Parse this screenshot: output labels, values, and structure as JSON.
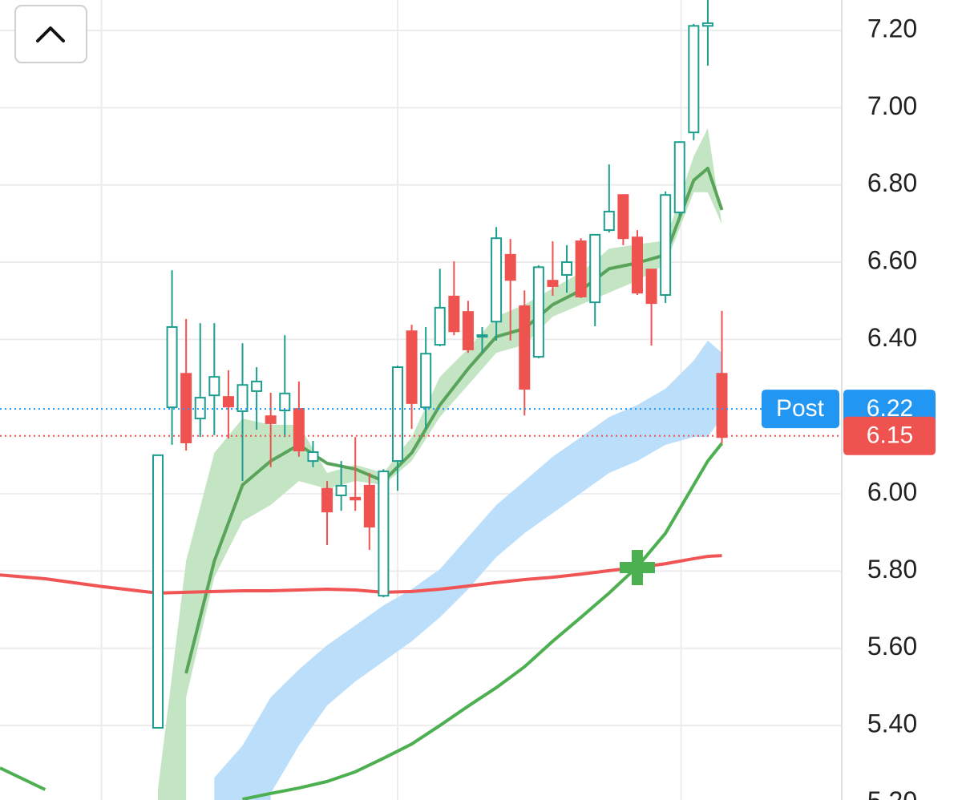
{
  "chart_data": {
    "type": "candlestick",
    "xlim": [
      -11.2,
      48.5
    ],
    "ylim": [
      5.207,
      7.279
    ],
    "yticks": [
      {
        "value": 7.2,
        "label": "7.20"
      },
      {
        "value": 7.0,
        "label": "7.00"
      },
      {
        "value": 6.8,
        "label": "6.80"
      },
      {
        "value": 6.6,
        "label": "6.60"
      },
      {
        "value": 6.4,
        "label": "6.40"
      },
      {
        "value": 6.0,
        "label": "6.00"
      },
      {
        "value": 5.8,
        "label": "5.80"
      },
      {
        "value": 5.6,
        "label": "5.60"
      },
      {
        "value": 5.4,
        "label": "5.40"
      },
      {
        "value": 5.2,
        "label": "5.20"
      }
    ],
    "xgrid": [
      -4,
      17,
      37.1
    ],
    "grid": true,
    "up_color": "#1e9e8e",
    "down_color": "#ef5350",
    "candles": {
      "x": [
        0,
        1,
        2,
        3,
        4,
        5,
        6,
        7,
        8,
        9,
        10,
        11,
        12,
        13,
        14,
        15,
        16,
        17,
        18,
        19,
        20,
        21,
        22,
        23,
        24,
        25,
        26,
        27,
        28,
        29,
        30,
        31,
        32,
        33,
        34,
        35,
        36,
        37,
        38,
        39,
        40
      ],
      "open": [
        5.394,
        6.224,
        6.311,
        6.195,
        6.255,
        6.251,
        6.214,
        6.266,
        6.201,
        6.216,
        6.22,
        6.085,
        6.013,
        5.996,
        5.99,
        6.021,
        5.736,
        6.085,
        6.421,
        6.224,
        6.386,
        6.511,
        6.471,
        6.407,
        6.446,
        6.619,
        6.486,
        6.355,
        6.552,
        6.567,
        6.654,
        6.496,
        6.683,
        6.774,
        6.664,
        6.581,
        6.515,
        6.729,
        6.936,
        7.212,
        6.311
      ],
      "high": [
        6.1,
        6.579,
        6.453,
        6.442,
        6.442,
        6.32,
        6.39,
        6.328,
        6.262,
        6.411,
        6.291,
        6.137,
        6.033,
        6.085,
        6.147,
        6.054,
        6.064,
        6.332,
        6.438,
        6.432,
        6.583,
        6.602,
        6.5,
        6.432,
        6.691,
        6.66,
        6.527,
        6.592,
        6.654,
        6.644,
        6.662,
        6.671,
        6.853,
        6.774,
        6.683,
        6.581,
        6.783,
        6.913,
        7.217,
        7.279,
        6.474
      ],
      "low": [
        5.394,
        6.127,
        6.112,
        6.147,
        6.152,
        6.143,
        6.033,
        6.166,
        6.069,
        6.147,
        6.096,
        6.069,
        5.867,
        5.956,
        5.956,
        5.855,
        5.732,
        6.008,
        6.168,
        6.168,
        6.382,
        6.411,
        6.365,
        6.365,
        6.397,
        6.397,
        6.203,
        6.351,
        6.513,
        6.521,
        6.507,
        6.434,
        6.677,
        6.644,
        6.515,
        6.384,
        6.494,
        6.718,
        6.916,
        7.109,
        6.131
      ],
      "close": [
        6.1,
        6.432,
        6.133,
        6.249,
        6.303,
        6.226,
        6.282,
        6.291,
        6.183,
        6.26,
        6.112,
        6.108,
        5.954,
        6.021,
        5.985,
        5.915,
        6.058,
        6.328,
        6.235,
        6.363,
        6.482,
        6.421,
        6.374,
        6.411,
        6.662,
        6.554,
        6.272,
        6.587,
        6.538,
        6.6,
        6.511,
        6.671,
        6.731,
        6.662,
        6.521,
        6.494,
        6.774,
        6.911,
        7.212,
        7.219,
        6.147
      ]
    },
    "line_x": [
      -11.2,
      -8,
      -4,
      -1,
      0,
      2,
      4,
      6,
      8,
      10,
      12,
      14,
      16,
      18,
      20,
      22,
      24,
      26,
      28,
      30,
      32,
      34,
      36,
      38,
      39,
      40
    ],
    "overlays": [
      {
        "kind": "band",
        "color": "#bbdefb",
        "upper": [
          null,
          null,
          null,
          null,
          null,
          null,
          5.265,
          5.348,
          5.473,
          5.545,
          5.608,
          5.659,
          5.711,
          5.753,
          5.805,
          5.888,
          5.971,
          6.033,
          6.096,
          6.147,
          6.199,
          6.23,
          6.272,
          6.345,
          6.397,
          6.365
        ],
        "lower": [
          null,
          null,
          null,
          null,
          null,
          null,
          null,
          null,
          5.224,
          5.348,
          5.452,
          5.514,
          5.566,
          5.618,
          5.68,
          5.753,
          5.836,
          5.898,
          5.95,
          6.002,
          6.054,
          6.085,
          6.127,
          6.147,
          6.147,
          6.199
        ]
      },
      {
        "kind": "band",
        "color": "#c3e5c3",
        "upper": [
          null,
          null,
          null,
          null,
          5.234,
          5.826,
          6.106,
          6.195,
          6.179,
          6.179,
          6.054,
          6.075,
          6.054,
          6.147,
          6.303,
          6.376,
          6.459,
          6.49,
          6.532,
          6.573,
          6.635,
          6.646,
          6.656,
          6.874,
          6.947,
          6.698
        ],
        "lower": [
          null,
          null,
          null,
          null,
          null,
          5.473,
          5.784,
          5.929,
          5.971,
          6.033,
          6.013,
          6.033,
          6.023,
          6.085,
          6.199,
          6.282,
          6.365,
          6.386,
          6.459,
          6.49,
          6.521,
          6.552,
          6.594,
          6.781,
          6.781,
          6.698
        ]
      },
      {
        "kind": "line",
        "color": "#5aa35a",
        "width": 4,
        "values": [
          null,
          null,
          null,
          null,
          null,
          5.535,
          5.826,
          6.023,
          6.085,
          6.127,
          6.079,
          6.064,
          6.033,
          6.106,
          6.23,
          6.324,
          6.407,
          6.428,
          6.49,
          6.527,
          6.583,
          6.598,
          6.619,
          6.812,
          6.843,
          6.735
        ]
      },
      {
        "kind": "line",
        "color": "#f05454",
        "width": 4,
        "values": [
          5.79,
          5.78,
          5.76,
          5.747,
          5.743,
          5.745,
          5.747,
          5.749,
          5.749,
          5.751,
          5.753,
          5.751,
          5.745,
          5.747,
          5.753,
          5.761,
          5.77,
          5.778,
          5.784,
          5.792,
          5.801,
          5.809,
          5.819,
          5.832,
          5.838,
          5.84
        ]
      },
      {
        "kind": "line",
        "color": "#4caf50",
        "width": 4,
        "values": [
          5.29,
          5.234,
          null,
          null,
          null,
          null,
          null,
          5.209,
          5.224,
          5.238,
          5.255,
          5.28,
          5.315,
          5.352,
          5.4,
          5.45,
          5.498,
          5.552,
          5.618,
          5.68,
          5.743,
          5.811,
          5.898,
          6.023,
          6.085,
          6.131
        ]
      }
    ],
    "markers": [
      {
        "x": 34,
        "value": 5.809,
        "color": "#4caf50"
      }
    ],
    "price_lines": [
      {
        "value": 6.22,
        "color": "#2196f3",
        "tag": "Post"
      },
      {
        "value": 6.15,
        "color": "#ef5350"
      }
    ]
  }
}
